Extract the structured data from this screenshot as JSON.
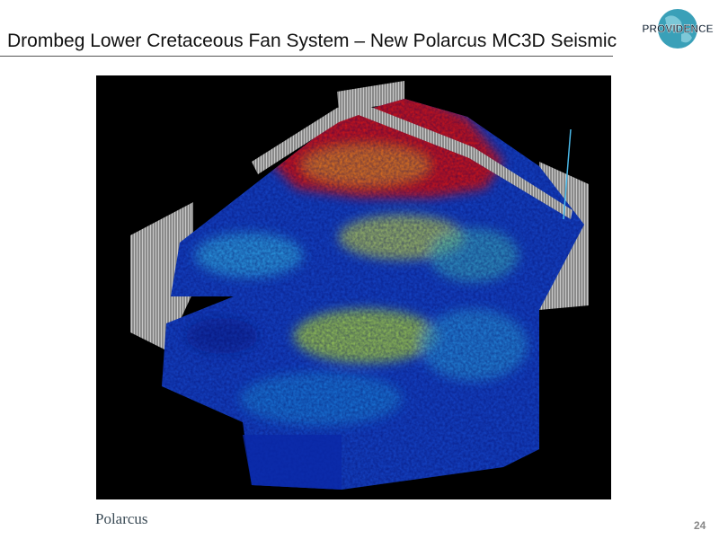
{
  "header": {
    "title": "Drombeg Lower Cretaceous Fan System – New Polarcus MC3D Seismic",
    "logo": "PROVIDENCE"
  },
  "footer": {
    "partner": "Polarcus",
    "page_number": "24"
  }
}
